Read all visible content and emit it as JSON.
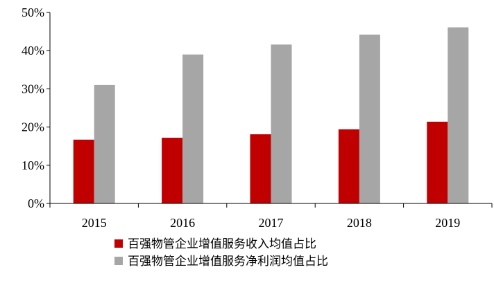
{
  "chart_data": {
    "type": "bar",
    "title": "",
    "xlabel": "",
    "ylabel": "",
    "categories": [
      "2015",
      "2016",
      "2017",
      "2018",
      "2019"
    ],
    "series": [
      {
        "name": "百强物管企业增值服务收入均值占比",
        "color": "#c00000",
        "values": [
          16.7,
          17.2,
          18.1,
          19.4,
          21.4
        ]
      },
      {
        "name": "百强物管企业增值服务净利润均值占比",
        "color": "#a6a6a6",
        "values": [
          31.0,
          39.0,
          41.6,
          44.2,
          46.1
        ]
      }
    ],
    "ylim": [
      0,
      50
    ],
    "yticks": [
      "0%",
      "10%",
      "20%",
      "30%",
      "40%",
      "50%"
    ],
    "ytick_values": [
      0,
      10,
      20,
      30,
      40,
      50
    ],
    "grid": false,
    "legend": "bottom-center"
  }
}
